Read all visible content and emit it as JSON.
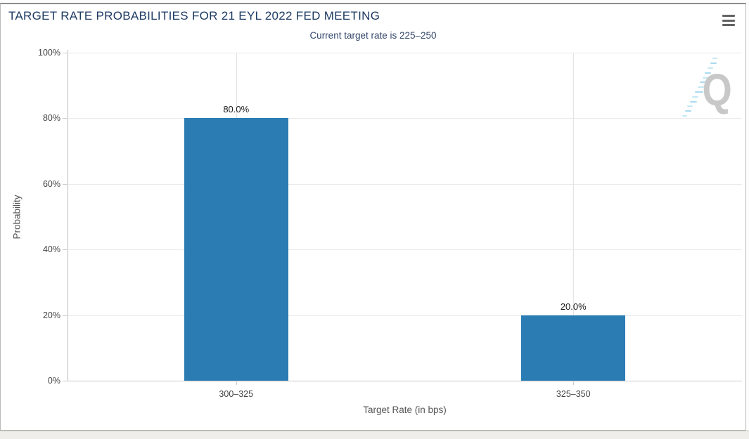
{
  "header": {
    "title": "TARGET RATE PROBABILITIES FOR 21 EYL 2022 FED MEETING",
    "subtitle": "Current target rate is 225–250"
  },
  "menu": {
    "icon": "hamburger-icon"
  },
  "watermark": {
    "letter": "Q"
  },
  "colors": {
    "bar": "#2a7cb3",
    "title_text": "#1d3a63",
    "subtitle_text": "#33476b",
    "watermark_gray": "#c8c8c8",
    "watermark_blue": "#a9daee"
  },
  "chart_data": {
    "type": "bar",
    "title": "TARGET RATE PROBABILITIES FOR 21 EYL 2022 FED MEETING",
    "subtitle": "Current target rate is 225–250",
    "categories": [
      "300–325",
      "325–350"
    ],
    "values": [
      80.0,
      20.0
    ],
    "value_labels": [
      "80.0%",
      "20.0%"
    ],
    "xlabel": "Target Rate (in bps)",
    "ylabel": "Probability",
    "ylim": [
      0,
      100
    ],
    "yticks": [
      0,
      20,
      40,
      60,
      80,
      100
    ],
    "ytick_labels": [
      "0%",
      "20%",
      "40%",
      "60%",
      "80%",
      "100%"
    ],
    "grid": true,
    "legend": false
  }
}
